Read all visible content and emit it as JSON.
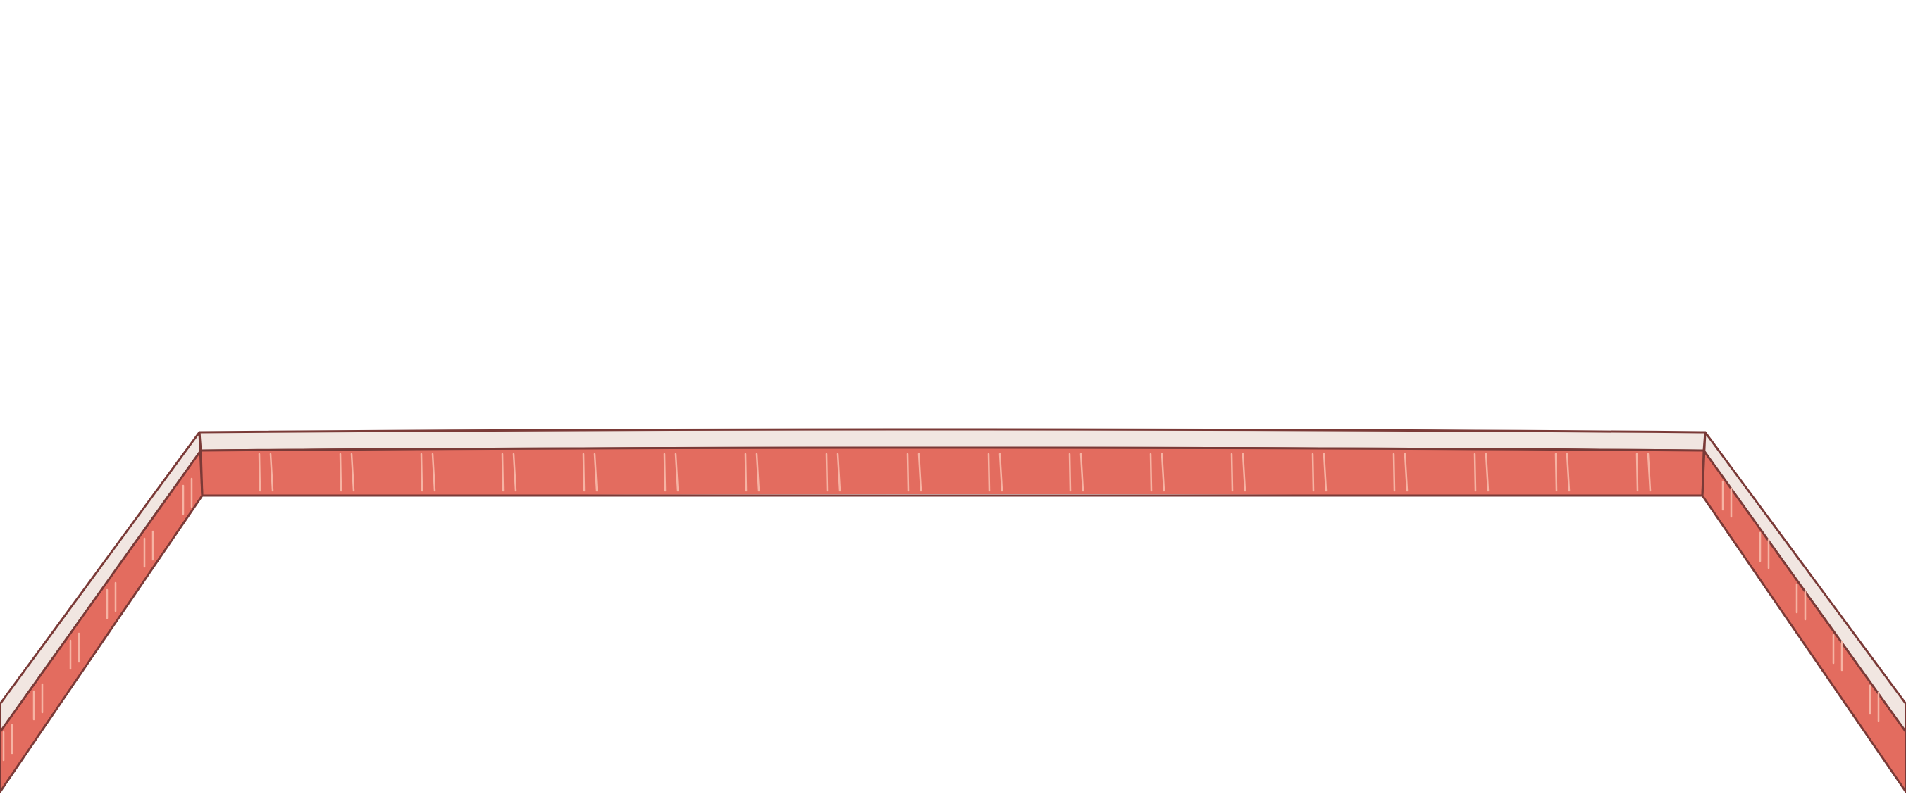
{
  "scene": {
    "type": "arena-wall-border",
    "background_color": "#ffffff",
    "wall_face_color": "#e36c5f",
    "wall_top_color": "#f1e6e1",
    "outline_color": "#7a3a37",
    "plank_line_color": "#f6b3a3"
  },
  "segments": [
    "left-wall",
    "back-wall",
    "right-wall"
  ],
  "plank_pair_count_back": 18
}
